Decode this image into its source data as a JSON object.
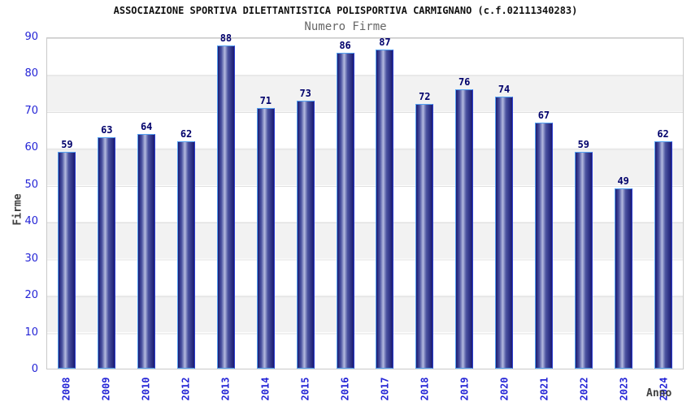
{
  "header": {
    "title": "ASSOCIAZIONE SPORTIVA DILETTANTISTICA POLISPORTIVA CARMIGNANO (c.f.02111340283)",
    "subtitle": "Numero Firme"
  },
  "chart_data": {
    "type": "bar",
    "title": "ASSOCIAZIONE SPORTIVA DILETTANTISTICA POLISPORTIVA CARMIGNANO (c.f.02111340283)",
    "subtitle": "Numero Firme",
    "xlabel": "Anno",
    "ylabel": "Firme",
    "categories": [
      "2008",
      "2009",
      "2010",
      "2012",
      "2013",
      "2014",
      "2015",
      "2016",
      "2017",
      "2018",
      "2019",
      "2020",
      "2021",
      "2022",
      "2023",
      "2024"
    ],
    "values": [
      59,
      63,
      64,
      62,
      88,
      71,
      73,
      86,
      87,
      72,
      76,
      74,
      67,
      59,
      49,
      62
    ],
    "ylim": [
      0,
      90
    ],
    "y_ticks": [
      90,
      80,
      70,
      60,
      50,
      40,
      30,
      20,
      10,
      0
    ],
    "grid": "alternating horizontal bands with gridlines every 10",
    "legend": "none",
    "colors": {
      "bar_dark": "#1a1a72",
      "bar_light": "#b4badf",
      "bar_outline": "#55a2f2",
      "tick_label": "#2424d6",
      "value_label": "#00006b",
      "band_gray": "#f2f2f2",
      "gridline": "#e0e0e0",
      "plot_border": "#c9c9c9",
      "subtitle_gray": "#666666"
    }
  }
}
